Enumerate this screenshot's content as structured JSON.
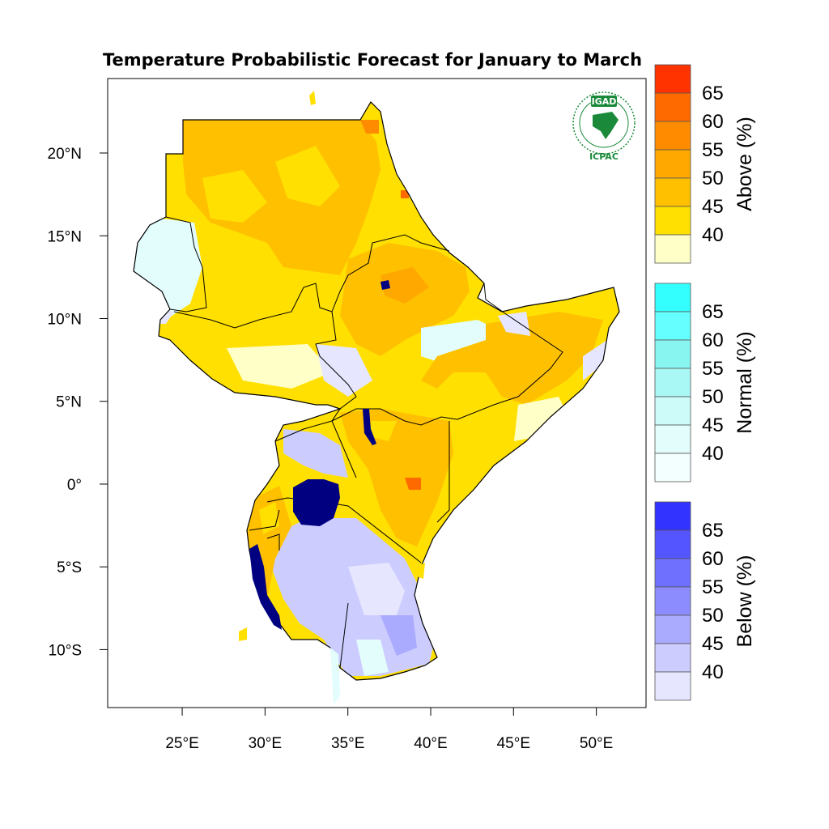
{
  "map": {
    "title": "Temperature Probabilistic Forecast for January to March",
    "lat_labels": [
      "20°N",
      "15°N",
      "10°N",
      "5°N",
      "0°",
      "5°S",
      "10°S"
    ],
    "lon_labels": [
      "25°E",
      "30°E",
      "35°E",
      "40°E",
      "45°E",
      "50°E"
    ],
    "lat_values": [
      20,
      15,
      10,
      5,
      0,
      -5,
      -10
    ],
    "lon_values": [
      25,
      30,
      35,
      40,
      45,
      50
    ],
    "extent": {
      "lon_min": 20.5,
      "lon_max": 53,
      "lat_min": -13.5,
      "lat_max": 24.5
    }
  },
  "logo": {
    "top_text": "IGAD",
    "bottom_text": "ICPAC"
  },
  "legends": [
    {
      "title": "Above (%)",
      "levels": [
        "65",
        "60",
        "55",
        "50",
        "45",
        "40"
      ],
      "colors": [
        "#ff3300",
        "#ff6a00",
        "#ff8c00",
        "#ffa800",
        "#ffc000",
        "#ffe000",
        "#ffffc8"
      ]
    },
    {
      "title": "Normal (%)",
      "levels": [
        "65",
        "60",
        "55",
        "50",
        "45",
        "40"
      ],
      "colors": [
        "#33ffff",
        "#66ffff",
        "#88f5f0",
        "#aaf8f5",
        "#ccfbfa",
        "#e2fdfc",
        "#f2fffe"
      ]
    },
    {
      "title": "Below (%)",
      "levels": [
        "65",
        "60",
        "55",
        "50",
        "45",
        "40"
      ],
      "colors": [
        "#3333ff",
        "#5555ff",
        "#7070ff",
        "#8c8cff",
        "#aaaaff",
        "#ccccff",
        "#e6e6ff"
      ]
    }
  ],
  "palette": {
    "above_40": "#ffe000",
    "above_45": "#ffc000",
    "above_50": "#ffa800",
    "above_55": "#ff8c00",
    "above_60": "#ff6a00",
    "normal_40": "#e2fdfc",
    "below_40": "#ccccff",
    "below_45": "#aaaaff",
    "lake": "#000080",
    "border": "#000000"
  }
}
